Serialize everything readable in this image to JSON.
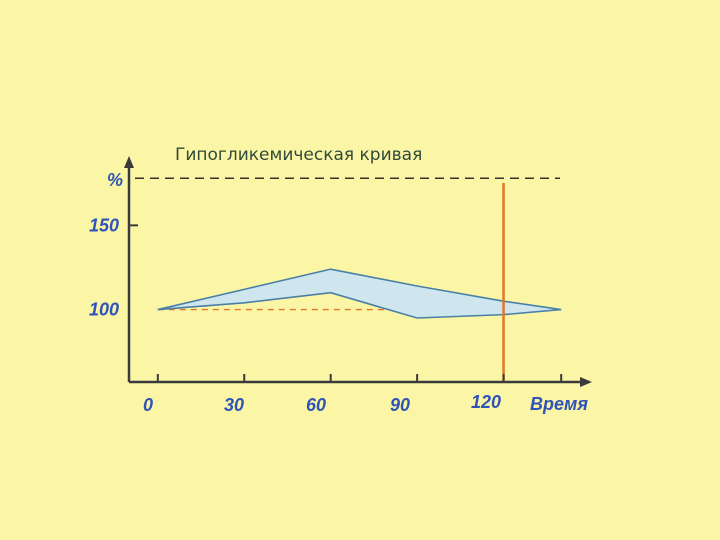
{
  "colors": {
    "background": "#fbf6a6",
    "axis": "#3a3a3a",
    "band_fill": "#cfe6ef",
    "band_stroke": "#4a7fa6",
    "vline": "#e0772a",
    "baseline_dash": "#e0772a",
    "threshold_dash": "#333333",
    "label": "#2f53b8",
    "title": "#2f4a3a"
  },
  "chart_data": {
    "type": "area",
    "title": "Гипогликемическая кривая",
    "ylabel": "%",
    "xlabel": "Время",
    "x_ticks": [
      "0",
      "30",
      "60",
      "90",
      "120"
    ],
    "y_ticks": [
      "100",
      "150"
    ],
    "xlim": [
      -10,
      150
    ],
    "ylim": [
      57,
      190
    ],
    "grid": false,
    "series": [
      {
        "x": [
          0,
          30,
          60,
          90,
          120,
          140
        ],
        "values": [
          100,
          112,
          124,
          114,
          105,
          100
        ]
      },
      {
        "x": [
          0,
          30,
          60,
          90,
          120,
          140
        ],
        "values": [
          100,
          104,
          110,
          95,
          97,
          100
        ]
      }
    ],
    "reference_lines": [
      {
        "axis": "y",
        "value": 178,
        "style": "dashed"
      },
      {
        "axis": "y",
        "value": 100,
        "style": "dashed"
      },
      {
        "axis": "x",
        "value": 120,
        "style": "solid"
      }
    ]
  }
}
